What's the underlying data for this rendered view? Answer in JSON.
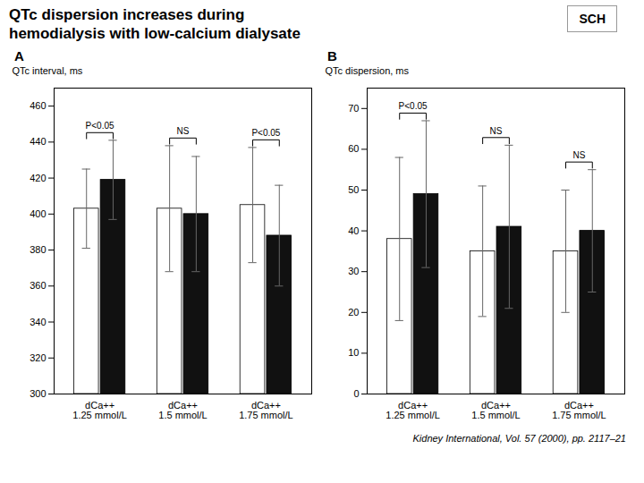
{
  "title": "QTc dispersion increases during\nhemodialysis with low-calcium dialysate",
  "caption": "Kidney International, Vol. 57 (2000), pp. 2117–21",
  "annotations": [
    "SCH"
  ],
  "chart_data": [
    {
      "type": "bar",
      "title": "A",
      "ylabel": "QTc interval, ms",
      "categories": [
        "dCa++\n1.25 mmol/L",
        "dCa++\n1.5 mmol/L",
        "dCa++\n1.75 mmol/L"
      ],
      "series": [
        {
          "color": "#ffffff",
          "values": [
            403,
            403,
            405
          ],
          "errors": [
            22,
            35,
            32
          ]
        },
        {
          "color": "#111111",
          "values": [
            419,
            400,
            388
          ],
          "errors": [
            22,
            32,
            28
          ]
        }
      ],
      "annotations": [
        "P<0.05",
        "NS",
        "P<0.05"
      ],
      "ylim": [
        300,
        470
      ],
      "yticks": [
        300,
        320,
        340,
        360,
        380,
        400,
        420,
        440,
        460
      ],
      "grid": false
    },
    {
      "type": "bar",
      "title": "B",
      "ylabel": "QTc dispersion, ms",
      "categories": [
        "dCa++\n1.25 mmol/L",
        "dCa++\n1.5 mmol/L",
        "dCa++\n1.75 mmol/L"
      ],
      "series": [
        {
          "color": "#ffffff",
          "values": [
            38,
            35,
            35
          ],
          "errors": [
            20,
            16,
            15
          ]
        },
        {
          "color": "#111111",
          "values": [
            49,
            41,
            40
          ],
          "errors": [
            18,
            20,
            15
          ]
        }
      ],
      "annotations": [
        "P<0.05",
        "NS",
        "NS"
      ],
      "ylim": [
        0,
        75
      ],
      "yticks": [
        0,
        10,
        20,
        30,
        40,
        50,
        60,
        70
      ],
      "grid": false
    }
  ]
}
